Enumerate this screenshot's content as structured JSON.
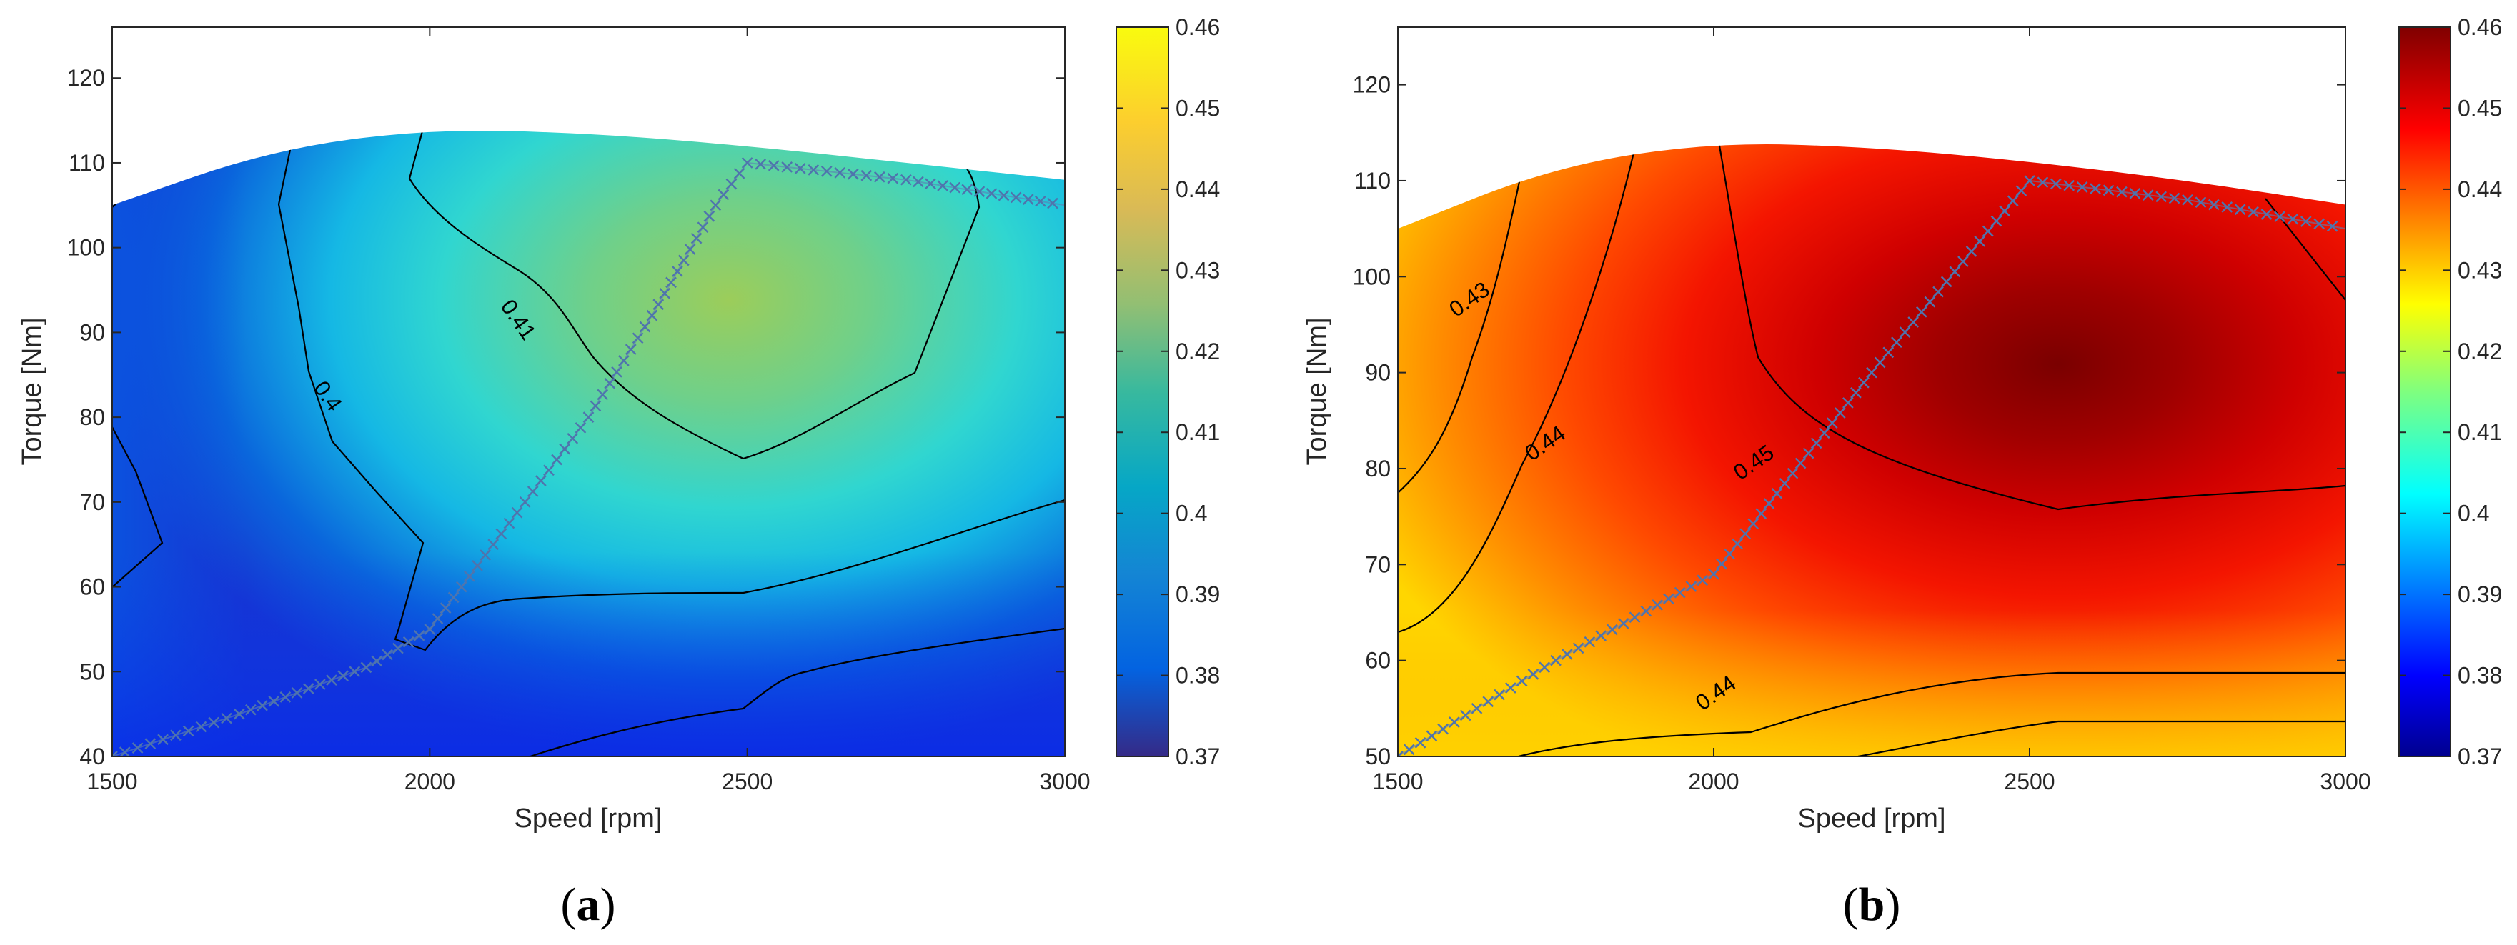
{
  "chart_data": [
    {
      "type": "heatmap",
      "panel_label": [
        "(",
        "a",
        ")"
      ],
      "xlabel": "Speed [rpm]",
      "ylabel": "Torque [Nm]",
      "xlim": [
        1500,
        3000
      ],
      "ylim": [
        40,
        126
      ],
      "xticks": [
        1500,
        2000,
        2500,
        3000
      ],
      "yticks": [
        40,
        50,
        60,
        70,
        80,
        90,
        100,
        110,
        120
      ],
      "colormap": "parula",
      "colorbar": {
        "min": 0.37,
        "max": 0.46,
        "ticks": [
          "0.37",
          "0.38",
          "0.39",
          "0.4",
          "0.41",
          "0.42",
          "0.43",
          "0.44",
          "0.45",
          "0.46"
        ]
      },
      "max_torque_curve": {
        "speed": [
          1500,
          1750,
          2000,
          2250,
          2500,
          2750,
          3000
        ],
        "torque": [
          105,
          111.5,
          114,
          113.5,
          112,
          110,
          108
        ]
      },
      "efficiency_peak": {
        "speed": 2500,
        "torque": 97,
        "value": 0.42
      },
      "contour_labels": [
        {
          "text": "0.41",
          "speed": 2130,
          "torque": 91
        },
        {
          "text": "0.4",
          "speed": 1830,
          "torque": 82
        }
      ],
      "operating_line": {
        "marker": "x",
        "speed": [
          1500,
          1700,
          1900,
          2000,
          2100,
          2250,
          2350,
          2450,
          2500,
          2750,
          3000
        ],
        "torque": [
          40,
          45,
          50.5,
          55,
          65,
          80,
          92,
          105,
          110,
          108,
          105
        ]
      }
    },
    {
      "type": "heatmap",
      "panel_label": [
        "(",
        "b",
        ")"
      ],
      "xlabel": "Speed [rpm]",
      "ylabel": "Torque [Nm]",
      "xlim": [
        1500,
        3000
      ],
      "ylim": [
        50,
        126
      ],
      "xticks": [
        1500,
        2000,
        2500,
        3000
      ],
      "yticks": [
        50,
        60,
        70,
        80,
        90,
        100,
        110,
        120
      ],
      "colormap": "jet",
      "colorbar": {
        "min": 0.37,
        "max": 0.46,
        "ticks": [
          "0.37",
          "0.38",
          "0.39",
          "0.4",
          "0.41",
          "0.42",
          "0.43",
          "0.44",
          "0.45",
          "0.46"
        ]
      },
      "max_torque_curve": {
        "speed": [
          1500,
          1750,
          2000,
          2250,
          2500,
          2750,
          3000
        ],
        "torque": [
          105,
          111.5,
          114,
          113.5,
          112,
          110,
          107.5
        ]
      },
      "efficiency_peak": {
        "speed": 2500,
        "torque": 93,
        "value": 0.459
      },
      "contour_labels": [
        {
          "text": "0.43",
          "speed": 1620,
          "torque": 97
        },
        {
          "text": "0.44",
          "speed": 1740,
          "torque": 82
        },
        {
          "text": "0.45",
          "speed": 2070,
          "torque": 80
        },
        {
          "text": "0.44",
          "speed": 2010,
          "torque": 56
        }
      ],
      "operating_line": {
        "marker": "x",
        "speed": [
          1500,
          1750,
          2000,
          2250,
          2500,
          2750,
          3000
        ],
        "torque": [
          50,
          60,
          69,
          90,
          110,
          108,
          105
        ]
      }
    }
  ]
}
